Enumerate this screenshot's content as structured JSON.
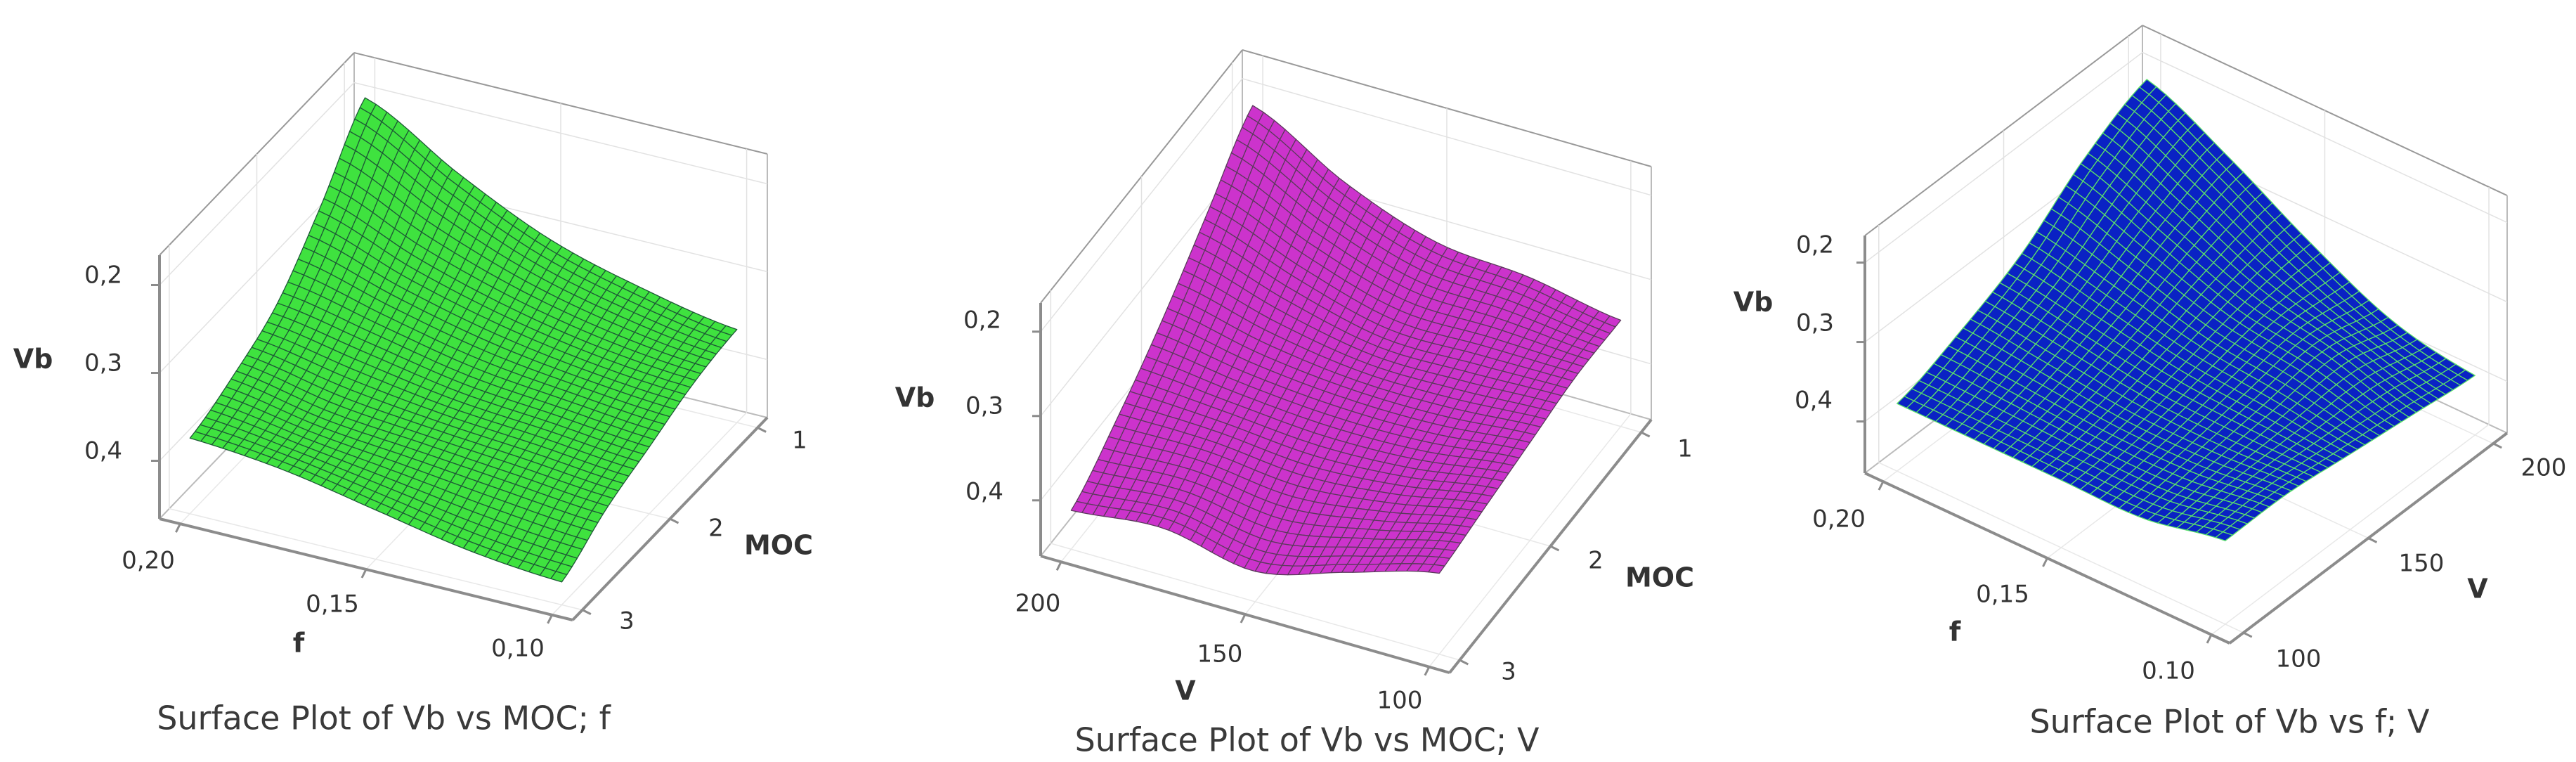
{
  "chart_data": [
    {
      "type": "surface",
      "title": "Surface Plot of Vb vs MOC; f",
      "xlabel": "f",
      "ylabel": "MOC",
      "zlabel": "Vb",
      "x_values": [
        0.2,
        0.175,
        0.15,
        0.125,
        0.1
      ],
      "y_values": [
        3,
        2.5,
        2,
        1.5,
        1
      ],
      "z_grid": [
        [
          0.22,
          0.24,
          0.27,
          0.33,
          0.4
        ],
        [
          0.21,
          0.22,
          0.25,
          0.29,
          0.34
        ],
        [
          0.19,
          0.21,
          0.23,
          0.26,
          0.29
        ],
        [
          0.17,
          0.2,
          0.22,
          0.24,
          0.26
        ],
        [
          0.16,
          0.19,
          0.21,
          0.23,
          0.24
        ]
      ],
      "x_tick_values": [
        0.2,
        0.15,
        0.1
      ],
      "x_ticks": [
        "0,20",
        "0,15",
        "0,10"
      ],
      "y_tick_values": [
        1,
        2,
        3
      ],
      "y_ticks": [
        "1",
        "2",
        "3"
      ],
      "z_tick_values": [
        0.2,
        0.3,
        0.4
      ],
      "z_ticks": [
        "0,2",
        "0,3",
        "0,4"
      ],
      "zlim": [
        0.134,
        0.434
      ],
      "grid": true,
      "surface_color": "#3fe23f",
      "mesh_color": "#1d5a36"
    },
    {
      "type": "surface",
      "title": "Surface Plot of Vb vs MOC; V",
      "xlabel": "V",
      "ylabel": "MOC",
      "zlabel": "Vb",
      "x_values": [
        200,
        175,
        150,
        125,
        100
      ],
      "y_values": [
        3,
        2.5,
        2,
        1.5,
        1
      ],
      "z_grid": [
        [
          0.18,
          0.22,
          0.27,
          0.33,
          0.39
        ],
        [
          0.19,
          0.22,
          0.25,
          0.29,
          0.33
        ],
        [
          0.17,
          0.21,
          0.24,
          0.26,
          0.29
        ],
        [
          0.2,
          0.22,
          0.24,
          0.26,
          0.28
        ],
        [
          0.23,
          0.24,
          0.25,
          0.26,
          0.26
        ]
      ],
      "x_tick_values": [
        200,
        150,
        100
      ],
      "x_ticks": [
        "200",
        "150",
        "100"
      ],
      "y_tick_values": [
        1,
        2,
        3
      ],
      "y_ticks": [
        "1",
        "2",
        "3"
      ],
      "z_tick_values": [
        0.2,
        0.3,
        0.4
      ],
      "z_ticks": [
        "0,2",
        "0,3",
        "0,4"
      ],
      "zlim": [
        0.134,
        0.434
      ],
      "grid": true,
      "surface_color": "#cc33cc",
      "mesh_color": "#5c3a5c"
    },
    {
      "type": "surface",
      "title": "Surface Plot of Vb vs f; V",
      "xlabel": "f",
      "ylabel": "V",
      "zlabel": "Vb",
      "x_values": [
        0.2,
        0.175,
        0.15,
        0.125,
        0.1
      ],
      "y_values": [
        100,
        125,
        150,
        175,
        200
      ],
      "z_grid": [
        [
          0.22,
          0.25,
          0.29,
          0.35,
          0.39
        ],
        [
          0.22,
          0.24,
          0.27,
          0.31,
          0.34
        ],
        [
          0.22,
          0.23,
          0.25,
          0.27,
          0.28
        ],
        [
          0.22,
          0.23,
          0.24,
          0.25,
          0.23
        ],
        [
          0.24,
          0.24,
          0.23,
          0.22,
          0.21
        ]
      ],
      "x_tick_values": [
        0.2,
        0.15,
        0.1
      ],
      "x_ticks": [
        "0,20",
        "0,15",
        "0.10"
      ],
      "y_tick_values": [
        100,
        150,
        200
      ],
      "y_ticks": [
        "100",
        "150",
        "200"
      ],
      "z_tick_values": [
        0.2,
        0.3,
        0.4
      ],
      "z_ticks": [
        "0,2",
        "0,3",
        "0,4"
      ],
      "zlim": [
        0.135,
        0.434
      ],
      "grid": true,
      "surface_color": "#0a22c4",
      "mesh_color": "#5ae06a"
    }
  ]
}
